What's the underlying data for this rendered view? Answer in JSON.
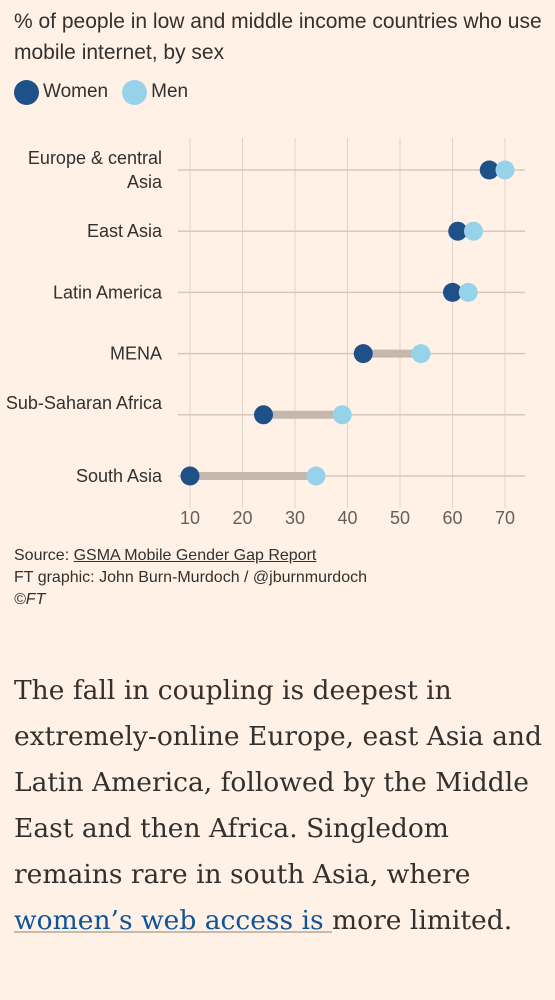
{
  "title": "% of people in low and middle income countries who use mobile internet, by sex",
  "legend": [
    {
      "label": "Women",
      "color": "#1f5189"
    },
    {
      "label": "Men",
      "color": "#96d3ea"
    }
  ],
  "colors": {
    "women": "#1f5189",
    "men": "#96d3ea",
    "connector": "#c4b8ae",
    "grid": "#e0d4c8",
    "rowline": "#d6c8bb"
  },
  "chart_data": {
    "type": "scatter",
    "subtype": "dumbbell",
    "title": "% of people in low and middle income countries who use mobile internet, by sex",
    "categories": [
      "Europe & central Asia",
      "East Asia",
      "Latin America",
      "MENA",
      "Sub-Saharan Africa",
      "South Asia"
    ],
    "series": [
      {
        "name": "Women",
        "values": [
          67,
          61,
          60,
          43,
          24,
          10
        ]
      },
      {
        "name": "Men",
        "values": [
          70,
          64,
          63,
          54,
          39,
          34
        ]
      }
    ],
    "xticks": [
      10,
      20,
      30,
      40,
      50,
      60,
      70
    ],
    "xlim": [
      8,
      72
    ],
    "grid": true,
    "legend_position": "top-left"
  },
  "footer": {
    "source_prefix": "Source: ",
    "source_link": "GSMA Mobile Gender Gap Report",
    "credit": "FT graphic: John Burn-Murdoch / @jburnmurdoch",
    "copyright": "©FT"
  },
  "article": {
    "text_before_link": "The fall in coupling is deepest in extremely-online Europe, east Asia and Latin America, followed by the Middle East and then Africa. Singledom remains rare in south Asia, where ",
    "link_text": "women’s web access is ",
    "text_after_link": "more limited."
  }
}
